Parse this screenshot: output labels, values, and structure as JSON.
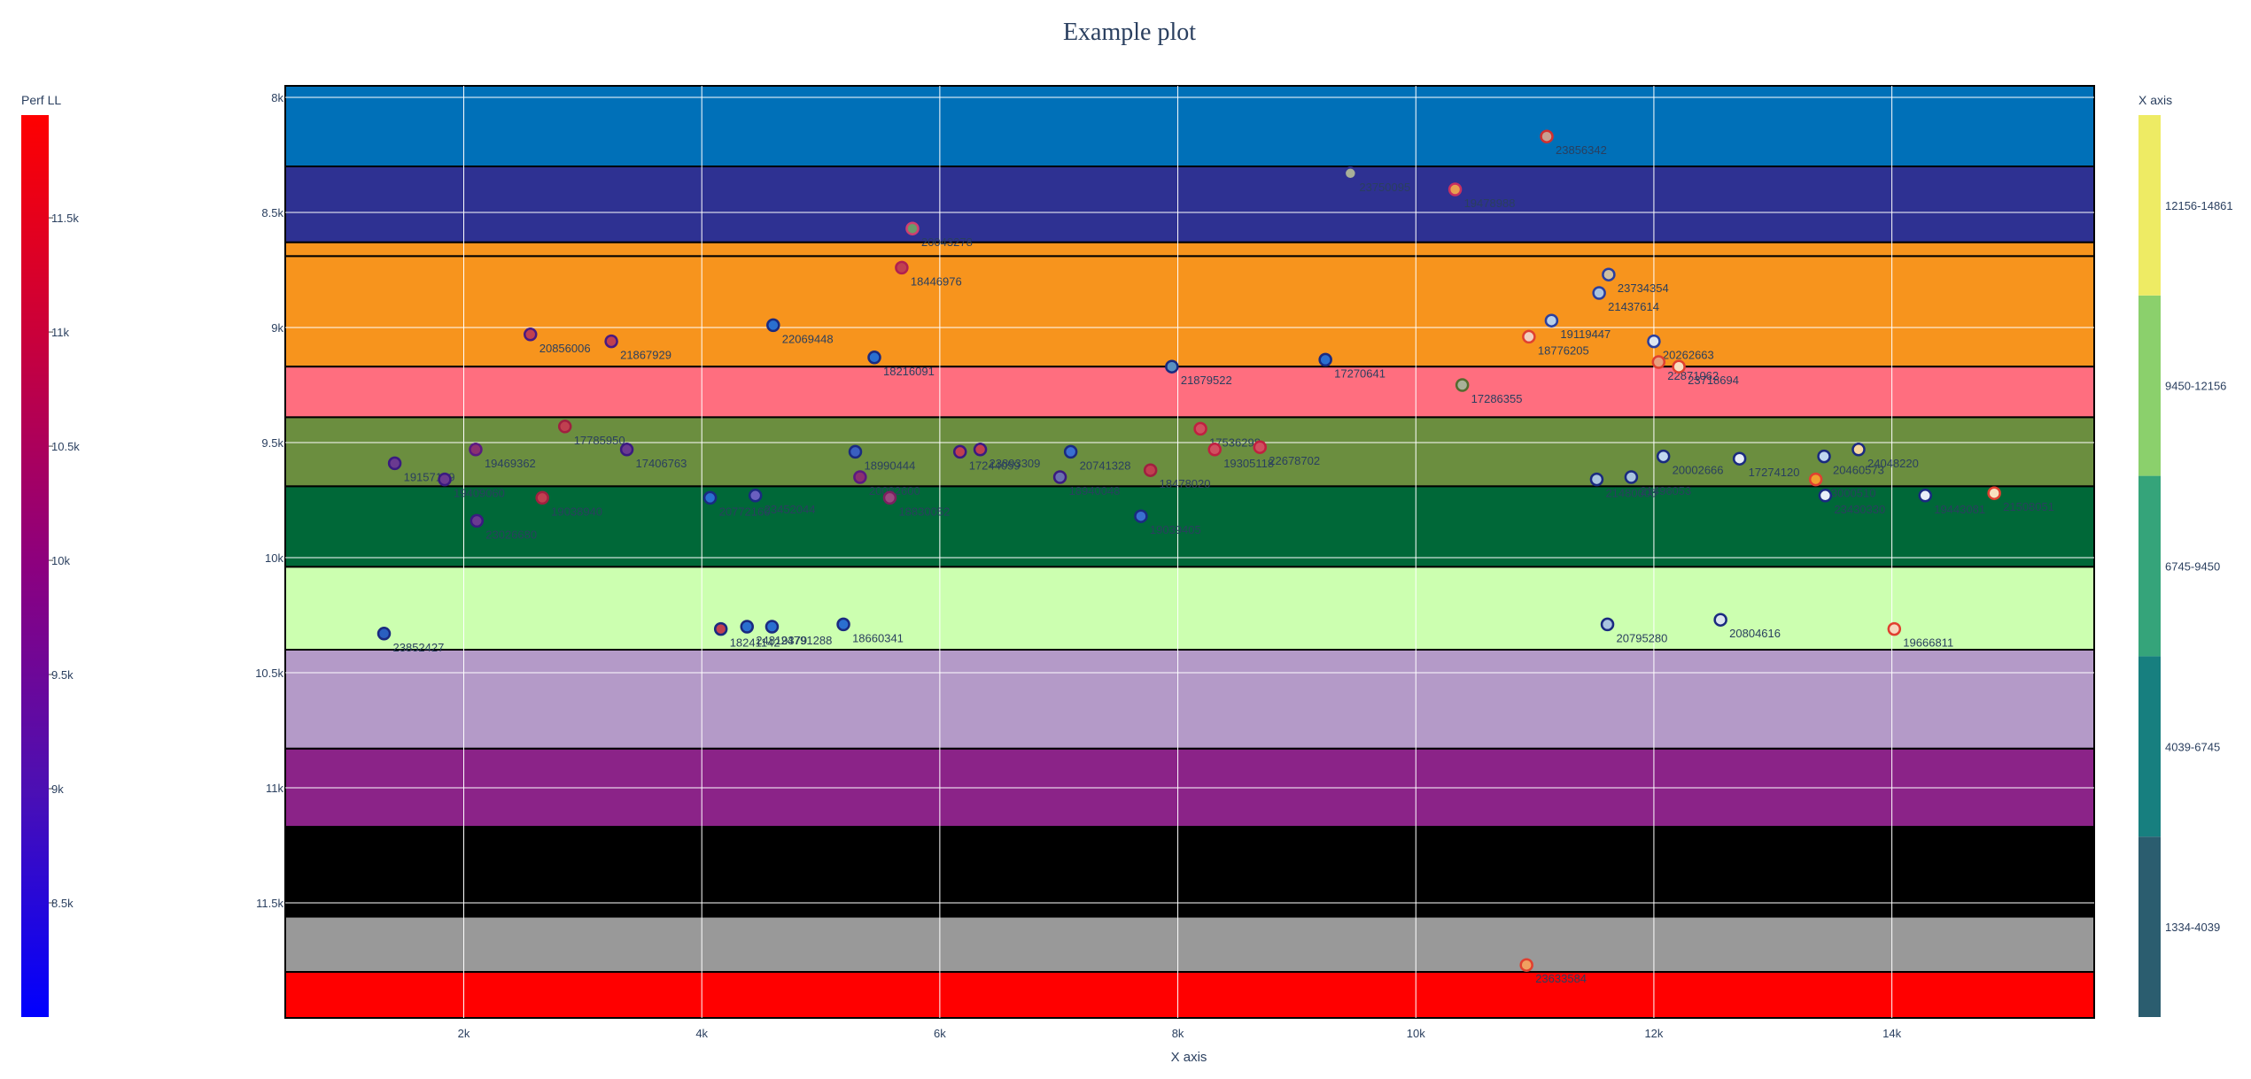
{
  "chart_data": {
    "type": "scatter",
    "title": "Example plot",
    "xlabel": "X axis",
    "ylabel": "",
    "xlim": [
      500,
      15700
    ],
    "ylim": [
      12000,
      7950
    ],
    "y_reversed": true,
    "grid": true,
    "x_ticks": [
      {
        "value": 2000,
        "label": "2k"
      },
      {
        "value": 4000,
        "label": "4k"
      },
      {
        "value": 6000,
        "label": "6k"
      },
      {
        "value": 8000,
        "label": "8k"
      },
      {
        "value": 10000,
        "label": "10k"
      },
      {
        "value": 12000,
        "label": "12k"
      },
      {
        "value": 14000,
        "label": "14k"
      }
    ],
    "y_ticks": [
      {
        "value": 8000,
        "label": "8k"
      },
      {
        "value": 8500,
        "label": "8.5k"
      },
      {
        "value": 9000,
        "label": "9k"
      },
      {
        "value": 9500,
        "label": "9.5k"
      },
      {
        "value": 10000,
        "label": "10k"
      },
      {
        "value": 10500,
        "label": "10.5k"
      },
      {
        "value": 11000,
        "label": "11k"
      },
      {
        "value": 11500,
        "label": "11.5k"
      }
    ],
    "bands": [
      {
        "y0": 7950,
        "y1": 8300,
        "color": "#0070b8"
      },
      {
        "y0": 8300,
        "y1": 8630,
        "color": "#2e3192"
      },
      {
        "y0": 8630,
        "y1": 8690,
        "color": "#f7941d"
      },
      {
        "y0": 8690,
        "y1": 9170,
        "color": "#f7941d"
      },
      {
        "y0": 9170,
        "y1": 9390,
        "color": "#ff6e7f"
      },
      {
        "y0": 9390,
        "y1": 9690,
        "color": "#6b8e3f"
      },
      {
        "y0": 9690,
        "y1": 10040,
        "color": "#006838"
      },
      {
        "y0": 10040,
        "y1": 10400,
        "color": "#ccffb0"
      },
      {
        "y0": 10400,
        "y1": 10830,
        "color": "#b49ac8"
      },
      {
        "y0": 10830,
        "y1": 11170,
        "color": "#8b2388"
      },
      {
        "y0": 11170,
        "y1": 11560,
        "color": "#000000"
      },
      {
        "y0": 11560,
        "y1": 11800,
        "color": "#999999"
      },
      {
        "y0": 11800,
        "y1": 12000,
        "color": "#ff0000"
      }
    ],
    "perf_colorbar": {
      "title": "Perf LL",
      "range": [
        8000,
        11950
      ],
      "colors": [
        "#0000ff",
        "#4b0fb4",
        "#8c007f",
        "#c8003c",
        "#ff0000"
      ],
      "ticks": [
        {
          "value": 8500,
          "label": "8.5k"
        },
        {
          "value": 9000,
          "label": "9k"
        },
        {
          "value": 9500,
          "label": "9.5k"
        },
        {
          "value": 10000,
          "label": "10k"
        },
        {
          "value": 10500,
          "label": "10.5k"
        },
        {
          "value": 11000,
          "label": "11k"
        },
        {
          "value": 11500,
          "label": "11.5k"
        }
      ]
    },
    "x_colorbar": {
      "title": "X axis",
      "bins": [
        {
          "label": "1334-4039",
          "color": "#2b5d6f"
        },
        {
          "label": "4039-6745",
          "color": "#177f7f"
        },
        {
          "label": "6745-9450",
          "color": "#35a47a"
        },
        {
          "label": "9450-12156",
          "color": "#8bd06c"
        },
        {
          "label": "12156-14861",
          "color": "#eeeb64"
        }
      ]
    },
    "points": [
      {
        "x": 11100,
        "y": 8170,
        "fill": "#c9a090",
        "line": "#d03030",
        "label": "23856342"
      },
      {
        "x": 9450,
        "y": 8330,
        "fill": "#a8b098",
        "line": "#2e3192",
        "label": "23750095"
      },
      {
        "x": 10330,
        "y": 8400,
        "fill": "#e8a050",
        "line": "#c83060",
        "label": "19478988"
      },
      {
        "x": 5770,
        "y": 8570,
        "fill": "#6a9c6a",
        "line": "#d04070",
        "label": "20043278"
      },
      {
        "x": 5680,
        "y": 8740,
        "fill": "#c04050",
        "line": "#b02050",
        "label": "18446976"
      },
      {
        "x": 11620,
        "y": 8770,
        "fill": "#cfc0a0",
        "line": "#2a3f9f",
        "label": "23734354"
      },
      {
        "x": 11540,
        "y": 8850,
        "fill": "#a9c4e0",
        "line": "#2a3f9f",
        "label": "21437614"
      },
      {
        "x": 11140,
        "y": 8970,
        "fill": "#b8d0e8",
        "line": "#2a3f9f",
        "label": "19119447"
      },
      {
        "x": 2560,
        "y": 9030,
        "fill": "#c04050",
        "line": "#4a1a80",
        "label": "20856006"
      },
      {
        "x": 3240,
        "y": 9060,
        "fill": "#c04050",
        "line": "#4a1a80",
        "label": "21867929"
      },
      {
        "x": 4600,
        "y": 8990,
        "fill": "#2a6fd0",
        "line": "#1a2a80",
        "label": "22069448"
      },
      {
        "x": 10950,
        "y": 9040,
        "fill": "#f0d0c0",
        "line": "#e04030",
        "label": "18776205"
      },
      {
        "x": 12000,
        "y": 9060,
        "fill": "#dde6f0",
        "line": "#2a3f9f",
        "label": "20262663"
      },
      {
        "x": 5450,
        "y": 9130,
        "fill": "#2a6fd0",
        "line": "#1a2a80",
        "label": "18216091"
      },
      {
        "x": 7950,
        "y": 9170,
        "fill": "#5a90c0",
        "line": "#1a2a80",
        "label": "21879522"
      },
      {
        "x": 9240,
        "y": 9140,
        "fill": "#2a6fd0",
        "line": "#1a2a80",
        "label": "17270641"
      },
      {
        "x": 12040,
        "y": 9150,
        "fill": "#e8a080",
        "line": "#e04030",
        "label": "22871062"
      },
      {
        "x": 12210,
        "y": 9170,
        "fill": "#f8e0c0",
        "line": "#e04030",
        "label": "23718694"
      },
      {
        "x": 10390,
        "y": 9250,
        "fill": "#a8b098",
        "line": "#556b2f",
        "label": "17286355"
      },
      {
        "x": 2850,
        "y": 9430,
        "fill": "#c04050",
        "line": "#a02040",
        "label": "17785950"
      },
      {
        "x": 2100,
        "y": 9530,
        "fill": "#8a3070",
        "line": "#5a1a80",
        "label": "19469362"
      },
      {
        "x": 3370,
        "y": 9530,
        "fill": "#6a3a90",
        "line": "#3a1a80",
        "label": "17406763"
      },
      {
        "x": 1420,
        "y": 9590,
        "fill": "#6a3a90",
        "line": "#3a1a80",
        "label": "19157129"
      },
      {
        "x": 5290,
        "y": 9540,
        "fill": "#3a5fc0",
        "line": "#1a2a80",
        "label": "18990444"
      },
      {
        "x": 6170,
        "y": 9540,
        "fill": "#c04050",
        "line": "#3a1a80",
        "label": "17244059"
      },
      {
        "x": 6340,
        "y": 9530,
        "fill": "#c04050",
        "line": "#3a1a80",
        "label": "23893309"
      },
      {
        "x": 7100,
        "y": 9540,
        "fill": "#3a6fd0",
        "line": "#1a2a80",
        "label": "20741328"
      },
      {
        "x": 8190,
        "y": 9440,
        "fill": "#d05060",
        "line": "#c02040",
        "label": "17536298"
      },
      {
        "x": 8310,
        "y": 9530,
        "fill": "#d05060",
        "line": "#c02040",
        "label": "19305118"
      },
      {
        "x": 8690,
        "y": 9520,
        "fill": "#d05060",
        "line": "#c02040",
        "label": "22678702"
      },
      {
        "x": 12080,
        "y": 9560,
        "fill": "#c0d8f0",
        "line": "#1a2a80",
        "label": "20002666"
      },
      {
        "x": 12720,
        "y": 9570,
        "fill": "#e8eef8",
        "line": "#1a2a80",
        "label": "17274120"
      },
      {
        "x": 13430,
        "y": 9560,
        "fill": "#c0d8f0",
        "line": "#1a2a80",
        "label": "20460573"
      },
      {
        "x": 13720,
        "y": 9530,
        "fill": "#f8d8a0",
        "line": "#1a2a80",
        "label": "24048220"
      },
      {
        "x": 1840,
        "y": 9660,
        "fill": "#6a3a90",
        "line": "#3a1a80",
        "label": "19409060"
      },
      {
        "x": 5330,
        "y": 9650,
        "fill": "#8a3070",
        "line": "#5a1a80",
        "label": "20082600"
      },
      {
        "x": 7010,
        "y": 9650,
        "fill": "#6a6fb0",
        "line": "#3a1a80",
        "label": "18940048"
      },
      {
        "x": 7770,
        "y": 9620,
        "fill": "#c04050",
        "line": "#a02040",
        "label": "18478020"
      },
      {
        "x": 11520,
        "y": 9660,
        "fill": "#a9c4e0",
        "line": "#1a2a80",
        "label": "21480000"
      },
      {
        "x": 11810,
        "y": 9650,
        "fill": "#a9c4e0",
        "line": "#1a2a80",
        "label": "21496053"
      },
      {
        "x": 13360,
        "y": 9660,
        "fill": "#f0a030",
        "line": "#e04030",
        "label": "23000510"
      },
      {
        "x": 2660,
        "y": 9740,
        "fill": "#c04050",
        "line": "#a02040",
        "label": "19038940"
      },
      {
        "x": 4070,
        "y": 9740,
        "fill": "#2a6fd0",
        "line": "#1a2a80",
        "label": "20772160"
      },
      {
        "x": 4450,
        "y": 9730,
        "fill": "#6a5fc0",
        "line": "#1a2a80",
        "label": "23452044"
      },
      {
        "x": 5580,
        "y": 9740,
        "fill": "#9a4a80",
        "line": "#7a2060",
        "label": "18830052"
      },
      {
        "x": 7690,
        "y": 9820,
        "fill": "#3a6fd0",
        "line": "#1a2a80",
        "label": "19039405"
      },
      {
        "x": 2110,
        "y": 9840,
        "fill": "#6a3a90",
        "line": "#3a1a80",
        "label": "23026680"
      },
      {
        "x": 13440,
        "y": 9730,
        "fill": "#e8eef8",
        "line": "#1a2a80",
        "label": "23430330"
      },
      {
        "x": 14280,
        "y": 9730,
        "fill": "#e8eef8",
        "line": "#1a2a80",
        "label": "19443081"
      },
      {
        "x": 14860,
        "y": 9720,
        "fill": "#f8e0c0",
        "line": "#e04030",
        "label": "21508051"
      },
      {
        "x": 1330,
        "y": 10330,
        "fill": "#2a5fc0",
        "line": "#1a2a80",
        "label": "23852427"
      },
      {
        "x": 4160,
        "y": 10310,
        "fill": "#c04050",
        "line": "#1a2a80",
        "label": "18241142"
      },
      {
        "x": 4380,
        "y": 10300,
        "fill": "#2a6fd0",
        "line": "#1a2a80",
        "label": "24819379"
      },
      {
        "x": 4590,
        "y": 10300,
        "fill": "#2a6fd0",
        "line": "#1a2a80",
        "label": "24791288"
      },
      {
        "x": 5190,
        "y": 10290,
        "fill": "#2a6fd0",
        "line": "#1a2a80",
        "label": "18660341"
      },
      {
        "x": 11610,
        "y": 10290,
        "fill": "#a9c4e0",
        "line": "#1a2a80",
        "label": "20795280"
      },
      {
        "x": 12560,
        "y": 10270,
        "fill": "#dde6f0",
        "line": "#1a2a80",
        "label": "20804616"
      },
      {
        "x": 14020,
        "y": 10310,
        "fill": "#f8d8c0",
        "line": "#e04030",
        "label": "19666811"
      },
      {
        "x": 10930,
        "y": 11770,
        "fill": "#f0a060",
        "line": "#e04030",
        "label": "23633584"
      }
    ]
  }
}
